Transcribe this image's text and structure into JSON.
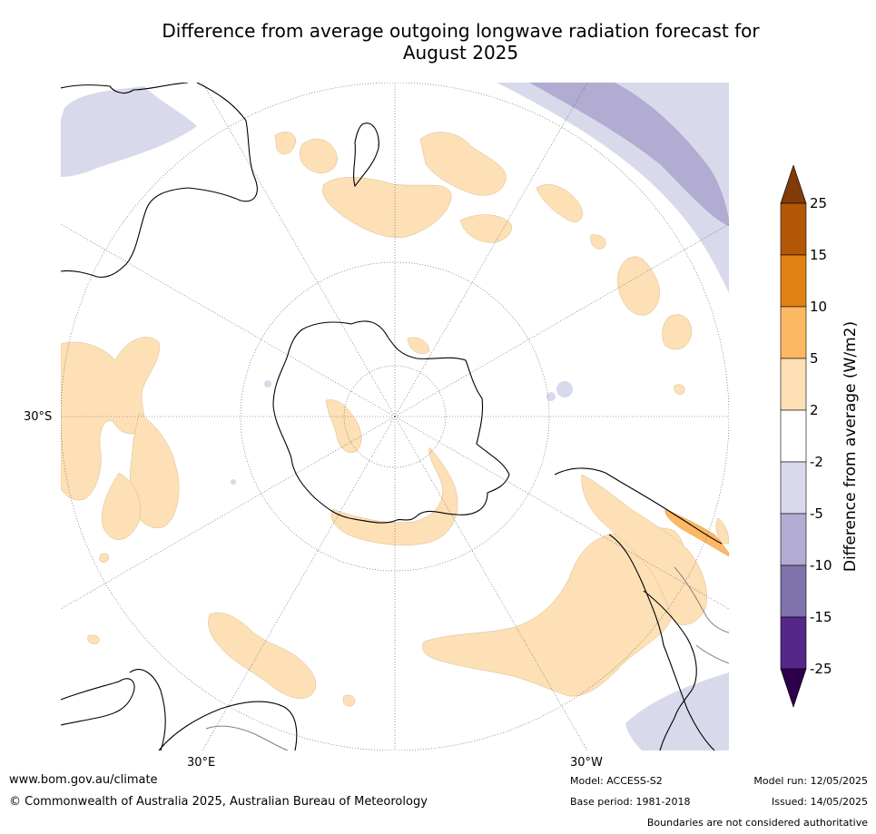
{
  "title_line1": "Difference from average outgoing longwave radiation forecast for",
  "title_line2": "August 2025",
  "map": {
    "projection": "south-polar stereographic",
    "graticule_labels": {
      "west": "30°S",
      "bottom_left": "30°E",
      "bottom_right": "30°W"
    }
  },
  "colorbar": {
    "title": "Difference from average (W/m2)",
    "ticks": [
      "25",
      "15",
      "10",
      "5",
      "2",
      "-2",
      "-5",
      "-10",
      "-15",
      "-25"
    ],
    "colors": {
      "over": "#7f3b08",
      "15_25": "#b35806",
      "10_15": "#e08214",
      "5_10": "#fdb863",
      "2_5": "#fee0b6",
      "m2_2": "#ffffff",
      "m5_m2": "#d8daeb",
      "m10_m5": "#b2abd2",
      "m15_m10": "#8073ac",
      "m25_m15": "#542788",
      "under": "#2d004b"
    }
  },
  "footer": {
    "url": "www.bom.gov.au/climate",
    "copyright": "© Commonwealth of Australia 2025, Australian Bureau of Meteorology",
    "model": "Model: ACCESS-S2",
    "base_period": "Base period: 1981-2018",
    "model_run": "Model run: 12/05/2025",
    "issued": "Issued: 14/05/2025",
    "disclaimer": "Boundaries are not considered authoritative"
  }
}
